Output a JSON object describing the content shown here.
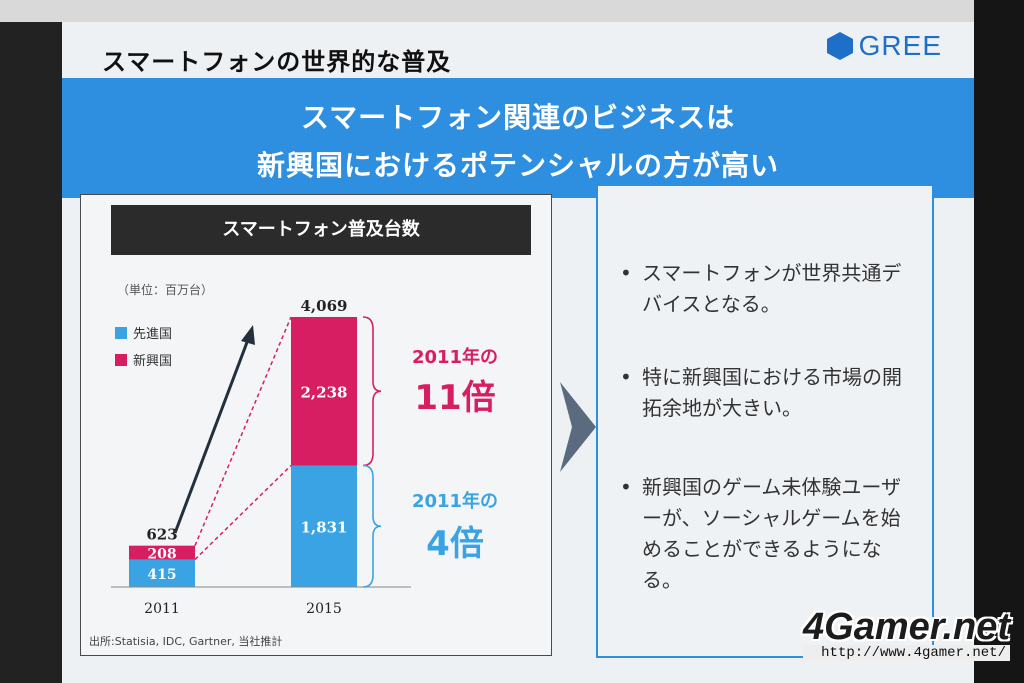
{
  "slide": {
    "title": "スマートフォンの世界的な普及",
    "logo_text": "GREE",
    "banner_line1": "スマートフォン関連のビジネスは",
    "banner_line2": "新興国におけるポテンシャルの方が高い"
  },
  "chart": {
    "header": "スマートフォン普及台数",
    "unit": "（単位：百万台）",
    "legend": [
      {
        "label": "先進国",
        "color": "#3aa3e3"
      },
      {
        "label": "新興国",
        "color": "#d81e63"
      }
    ],
    "source": "出所:Statisia, IDC, Gartner, 当社推計",
    "annotation_emerging_prefix": "2011年の",
    "annotation_emerging_multiplier": "11倍",
    "annotation_developed_prefix": "2011年の",
    "annotation_developed_multiplier": "4倍"
  },
  "chart_data": {
    "type": "bar",
    "categories": [
      "2011",
      "2015"
    ],
    "series": [
      {
        "name": "先進国",
        "values": [
          415,
          1831
        ]
      },
      {
        "name": "新興国",
        "values": [
          208,
          2238
        ]
      }
    ],
    "totals": [
      623,
      4069
    ],
    "colors": {
      "先進国": "#3aa3e3",
      "新興国": "#d81e63"
    }
  },
  "bullets": [
    "スマートフォンが世界共通デバイスとなる。",
    "特に新興国における市場の開拓余地が大きい。",
    "新興国のゲーム未体験ユーザーが、ソーシャルゲームを始めることができるようになる。"
  ],
  "watermark": {
    "logo": "4Gamer.net",
    "url": "http://www.4gamer.net/"
  }
}
